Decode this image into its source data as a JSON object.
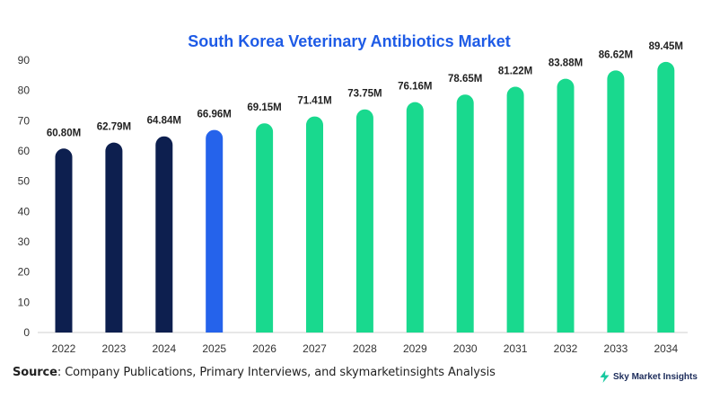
{
  "chart_data": {
    "type": "bar",
    "title": "South Korea Veterinary Antibiotics Market",
    "categories": [
      "2022",
      "2023",
      "2024",
      "2025",
      "2026",
      "2027",
      "2028",
      "2029",
      "2030",
      "2031",
      "2032",
      "2033",
      "2034"
    ],
    "values": [
      60.8,
      62.79,
      64.84,
      66.96,
      69.15,
      71.41,
      73.75,
      76.16,
      78.65,
      81.22,
      83.88,
      86.62,
      89.45
    ],
    "data_labels": [
      "60.80M",
      "62.79M",
      "64.84M",
      "66.96M",
      "69.15M",
      "71.41M",
      "73.75M",
      "76.16M",
      "78.65M",
      "81.22M",
      "83.88M",
      "86.62M",
      "89.45M"
    ],
    "y_ticks": [
      "0",
      "10",
      "20",
      "30",
      "40",
      "50",
      "60",
      "70",
      "80",
      "90"
    ],
    "ylim": [
      0,
      90
    ],
    "xlabel": "",
    "ylabel": "",
    "grid": false,
    "legend": "none",
    "bar_colors": [
      "#0d1f4f",
      "#0d1f4f",
      "#0d1f4f",
      "#2563eb",
      "#19d98e",
      "#19d98e",
      "#19d98e",
      "#19d98e",
      "#19d98e",
      "#19d98e",
      "#19d98e",
      "#19d98e",
      "#19d98e"
    ],
    "title_color": "#1e5be6"
  },
  "footer": {
    "source_label": "Source",
    "source_text": ": Company Publications, Primary Interviews, and skymarketinsights Analysis"
  },
  "brand": {
    "name": "Sky Market Insights",
    "icon": "lightning-bolt-icon",
    "icon_color": "#19c9a0"
  }
}
